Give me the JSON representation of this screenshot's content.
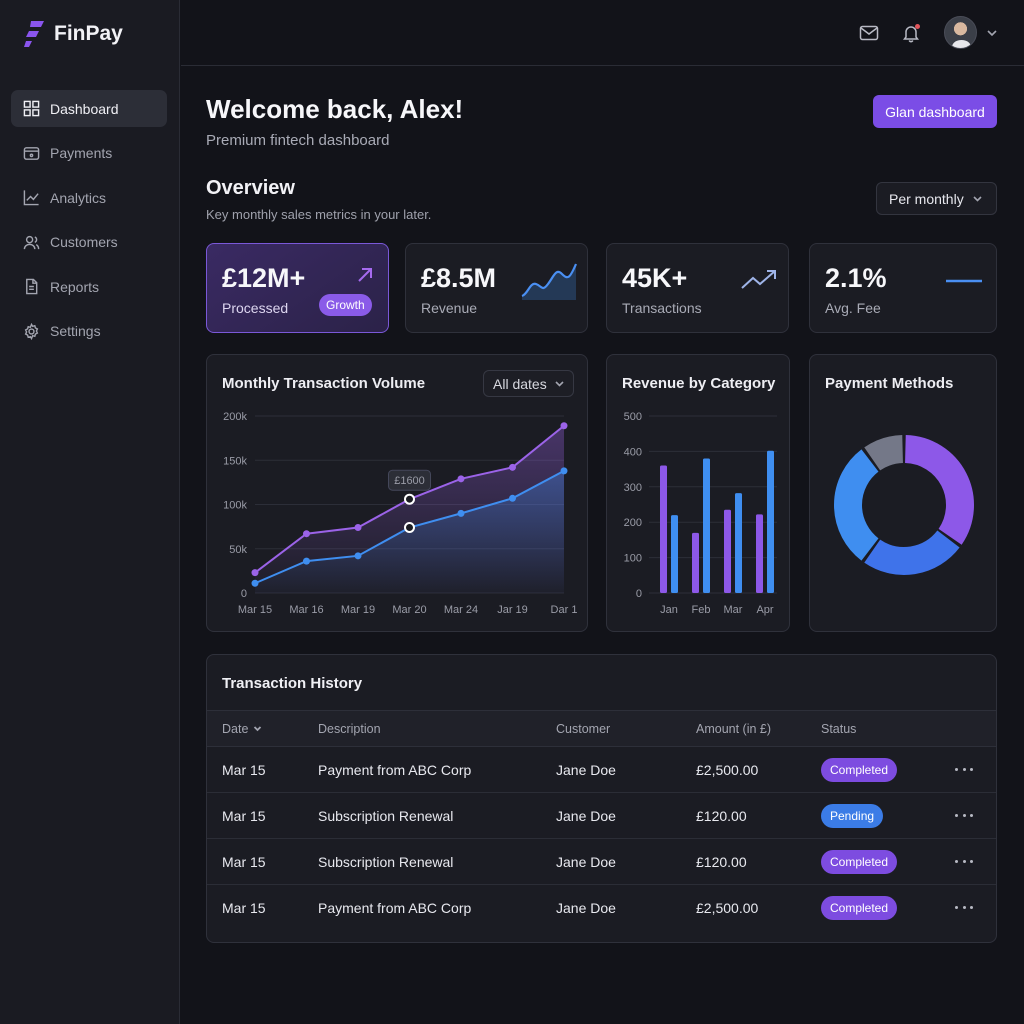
{
  "app": {
    "name": "FinPay",
    "brand_color": "#7b4de6"
  },
  "sidebar": {
    "items": [
      {
        "label": "Dashboard",
        "icon": "grid-icon",
        "active": true
      },
      {
        "label": "Payments",
        "icon": "wallet-icon",
        "active": false
      },
      {
        "label": "Analytics",
        "icon": "line-chart-icon",
        "active": false
      },
      {
        "label": "Customers",
        "icon": "users-icon",
        "active": false
      },
      {
        "label": "Reports",
        "icon": "document-icon",
        "active": false
      },
      {
        "label": "Settings",
        "icon": "gear-icon",
        "active": false
      }
    ]
  },
  "topbar": {
    "icons": [
      "mail-icon",
      "bell-icon",
      "avatar",
      "chevron-down-icon"
    ]
  },
  "header": {
    "title": "Welcome back, Alex!",
    "subtitle": "Premium fintech dashboard",
    "button_label": "Glan dashboard"
  },
  "overview": {
    "title": "Overview",
    "subtitle": "Key monthly sales metrics in  your later.",
    "period_select": "Per monthly"
  },
  "stats": [
    {
      "value": "£12M+",
      "label": "Processed",
      "badge": "Growth",
      "icon": "arrow-up-right-icon"
    },
    {
      "value": "£8.5M",
      "label": "Revenue",
      "icon": "sparkline-icon"
    },
    {
      "value": "45K+",
      "label": "Transactions",
      "icon": "trend-up-icon"
    },
    {
      "value": "2.1%",
      "label": "Avg. Fee",
      "icon": "flat-line-icon"
    }
  ],
  "monthly_volume": {
    "title": "Monthly Transaction Volume",
    "filter": "All dates",
    "tooltip": "£1600"
  },
  "revenue_by_category": {
    "title": "Revenue by Category"
  },
  "payment_methods": {
    "title": "Payment Methods"
  },
  "chart_data": [
    {
      "type": "line",
      "title": "Monthly Transaction Volume",
      "x": [
        "Mar 15",
        "Mar 16",
        "Mar 19",
        "Mar 20",
        "Mar 24",
        "Jar 19",
        "Dar 1"
      ],
      "y_ticks": [
        "200k",
        "150k",
        "100k",
        "50k",
        "0"
      ],
      "ylim": [
        0,
        200000
      ],
      "series": [
        {
          "color": "#9b63e8",
          "values": [
            23000,
            67000,
            74000,
            106000,
            129000,
            142000,
            189000
          ]
        },
        {
          "color": "#3f8ef0",
          "values": [
            11000,
            36000,
            42000,
            74000,
            90000,
            107000,
            138000
          ]
        }
      ],
      "grid": true
    },
    {
      "type": "bar",
      "title": "Revenue by Category",
      "categories": [
        "Jan",
        "Feb",
        "Mar",
        "Apr"
      ],
      "y_ticks": [
        "500",
        "400",
        "300",
        "200",
        "100",
        "0"
      ],
      "ylim": [
        0,
        500
      ],
      "series": [
        {
          "color": "#8d58e8",
          "values": [
            360,
            170,
            235,
            222
          ]
        },
        {
          "color": "#3f8ef0",
          "values": [
            220,
            380,
            282,
            402
          ]
        }
      ],
      "grid": true
    },
    {
      "type": "pie",
      "title": "Payment Methods",
      "slices": [
        {
          "value": 35,
          "color": "#8d58e8"
        },
        {
          "value": 25,
          "color": "#3f73ea"
        },
        {
          "value": 30,
          "color": "#3f8ef0"
        },
        {
          "value": 10,
          "color": "#747888"
        }
      ]
    }
  ],
  "transactions": {
    "title": "Transaction History",
    "columns": [
      "Date",
      "Description",
      "Customer",
      "Amount (in £)",
      "Status"
    ],
    "rows": [
      {
        "date": "Mar 15",
        "description": "Payment from ABC Corp",
        "customer": "Jane Doe",
        "amount": "£2,500.00",
        "status": "Completed"
      },
      {
        "date": "Mar 15",
        "description": "Subscription Renewal",
        "customer": "Jane Doe",
        "amount": "£120.00",
        "status": "Pending"
      },
      {
        "date": "Mar 15",
        "description": "Subscription Renewal",
        "customer": "Jane Doe",
        "amount": "£120.00",
        "status": "Completed"
      },
      {
        "date": "Mar 15",
        "description": "Payment from ABC Corp",
        "customer": "Jane Doe",
        "amount": "£2,500.00",
        "status": "Completed"
      }
    ]
  }
}
